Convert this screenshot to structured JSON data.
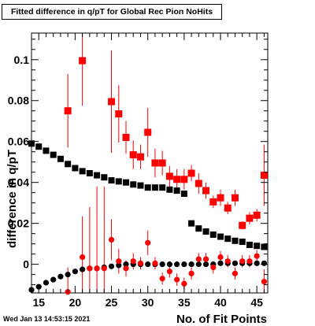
{
  "title": "Fitted difference in q/pT for Global Rec Pion NoHits",
  "datestamp": "Wed Jan 13 14:53:15 2021",
  "chart_data": {
    "type": "scatter",
    "title": "Fitted difference in q/pT for Global Rec Pion NoHits",
    "xlabel": "No. of Fit Points",
    "ylabel": "difference in q/pT",
    "xlim": [
      14,
      46.5
    ],
    "ylim": [
      -0.014,
      0.113
    ],
    "xticks": [
      15,
      20,
      25,
      30,
      35,
      40,
      45
    ],
    "xtick_labels": [
      "15",
      "20",
      "25",
      "30",
      "35",
      "40",
      "45"
    ],
    "yticks": [
      0,
      0.02,
      0.04,
      0.06,
      0.08,
      0.1
    ],
    "ytick_labels": [
      "0",
      "0.02",
      "0.04",
      "0.06",
      "0.08",
      "0.1"
    ],
    "grid": false,
    "legend": "none",
    "colors": {
      "black": "#000000",
      "red": "#ff0000"
    },
    "series": [
      {
        "marker": "square",
        "color": "#000000",
        "x": [
          14,
          15,
          16,
          17,
          18,
          19,
          20,
          21,
          22,
          23,
          24,
          25,
          26,
          27,
          28,
          29,
          30,
          31,
          32,
          33,
          34,
          35,
          36,
          37,
          38,
          39,
          40,
          41,
          42,
          43,
          44,
          45,
          46
        ],
        "y": [
          0.059,
          0.0575,
          0.0555,
          0.0535,
          0.0515,
          0.049,
          0.047,
          0.0455,
          0.0445,
          0.0435,
          0.0425,
          0.041,
          0.0405,
          0.04,
          0.039,
          0.0385,
          0.0375,
          0.0375,
          0.0375,
          0.0365,
          0.036,
          0.0345,
          0.02,
          0.0175,
          0.016,
          0.0145,
          0.0135,
          0.0125,
          0.0115,
          0.011,
          0.0095,
          0.009,
          0.0085
        ]
      },
      {
        "marker": "circle",
        "color": "#000000",
        "x": [
          14,
          15,
          16,
          17,
          18,
          19,
          20,
          21,
          22,
          23,
          24,
          25,
          26,
          27,
          28,
          29,
          30,
          31,
          32,
          33,
          34,
          35,
          36,
          37,
          38,
          39,
          40,
          41,
          42,
          43,
          44,
          45,
          46
        ],
        "y": [
          -0.0125,
          -0.011,
          -0.009,
          -0.0075,
          -0.006,
          -0.005,
          -0.0035,
          -0.0025,
          -0.002,
          -0.002,
          -0.0015,
          -0.001,
          -0.0005,
          0,
          0,
          0,
          0,
          0,
          0,
          0,
          0,
          0,
          0,
          0,
          0,
          0,
          0.0005,
          0.0005,
          0.0005,
          0.0005,
          0.0005,
          0.0005,
          0.0005
        ]
      },
      {
        "marker": "square",
        "color": "#ff0000",
        "x": [
          19,
          21,
          25,
          26,
          27,
          28,
          29,
          30,
          31,
          32,
          33,
          34,
          35,
          36,
          37,
          38,
          39,
          40,
          41,
          42,
          43,
          44,
          45,
          46
        ],
        "y": [
          0.075,
          0.0995,
          0.0795,
          0.0735,
          0.062,
          0.0535,
          0.0525,
          0.0645,
          0.0495,
          0.0495,
          0.043,
          0.0415,
          0.0415,
          0.0445,
          0.0395,
          0.036,
          0.0305,
          0.0325,
          0.0275,
          0.0325,
          0.019,
          0.0225,
          0.024,
          0.0435
        ],
        "err": [
          0.018,
          0.022,
          0.025,
          0.014,
          0.008,
          0.007,
          0.006,
          0.012,
          0.007,
          0.006,
          0.005,
          0.005,
          0.005,
          0.004,
          0.005,
          0.004,
          0.003,
          0.004,
          0.003,
          0.004,
          0.002,
          0.003,
          0.003,
          0.015
        ]
      },
      {
        "marker": "circle",
        "color": "#ff0000",
        "x": [
          19,
          21,
          22,
          23,
          24,
          25,
          26,
          27,
          28,
          29,
          30,
          31,
          32,
          33,
          34,
          35,
          36,
          37,
          38,
          39,
          40,
          41,
          42,
          43,
          44,
          45,
          46
        ],
        "y": [
          -0.0135,
          0.0035,
          -0.002,
          -0.002,
          -0.002,
          0.012,
          0.0015,
          -0.002,
          0.0015,
          0.0005,
          0.0105,
          0.0005,
          -0.007,
          -0.0035,
          -0.0075,
          -0.0095,
          -0.0045,
          0.0025,
          0.0025,
          -0.0015,
          0.0035,
          0.0015,
          -0.0045,
          0.0015,
          0.0015,
          0.004,
          -0.0085
        ],
        "err": [
          0.012,
          0.02,
          0.03,
          0.04,
          0.04,
          0.01,
          0.006,
          0.004,
          0.004,
          0.003,
          0.006,
          0.003,
          0.003,
          0.003,
          0.003,
          0.003,
          0.003,
          0.003,
          0.003,
          0.003,
          0.003,
          0.003,
          0.003,
          0.003,
          0.003,
          0.003,
          0.006
        ]
      }
    ]
  }
}
